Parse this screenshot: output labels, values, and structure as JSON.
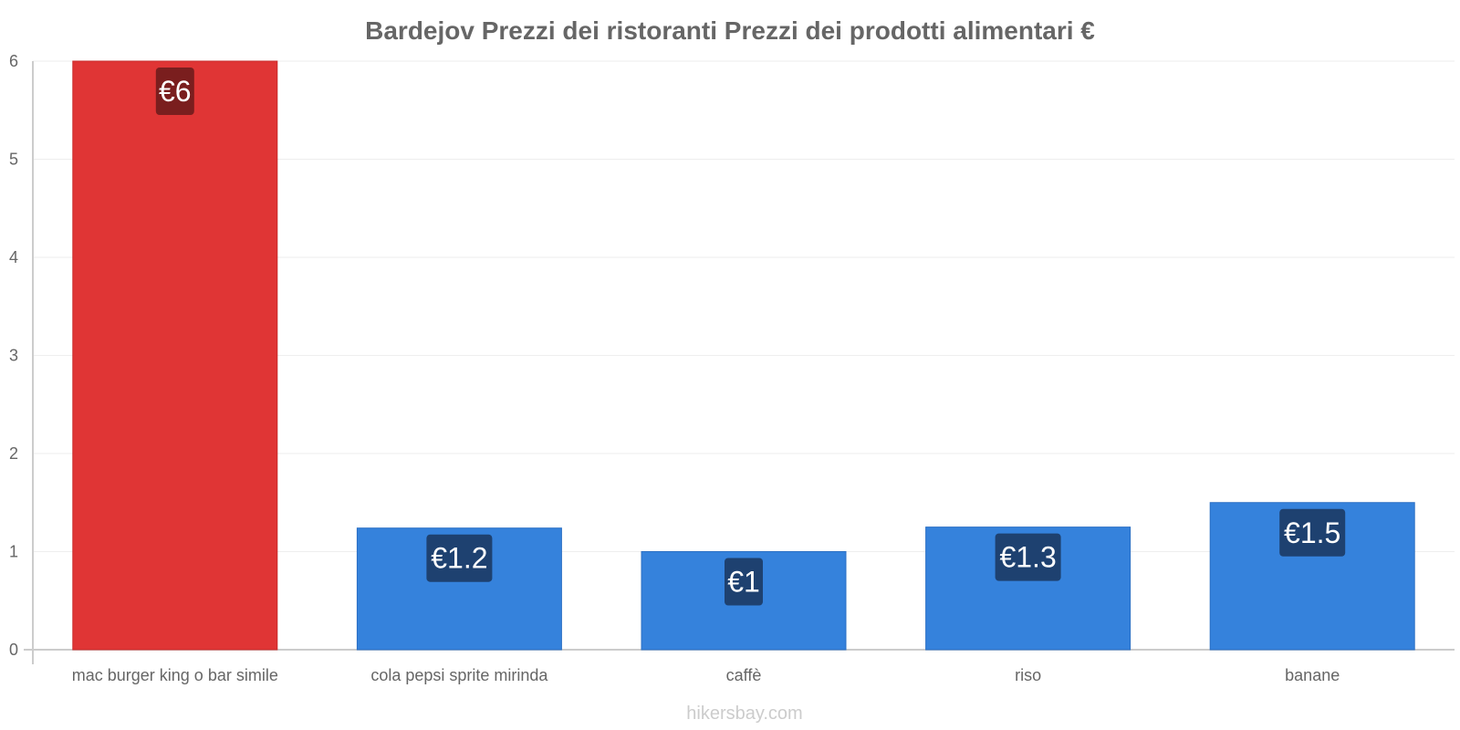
{
  "chart_data": {
    "type": "bar",
    "title": "Bardejov Prezzi dei ristoranti Prezzi dei prodotti alimentari €",
    "categories": [
      "mac burger king o bar simile",
      "cola pepsi sprite mirinda",
      "caffè",
      "riso",
      "banane"
    ],
    "values": [
      6,
      1.24,
      1,
      1.25,
      1.5
    ],
    "data_labels": [
      "€6",
      "€1.2",
      "€1",
      "€1.3",
      "€1.5"
    ],
    "highlight_index": 0,
    "ylim": [
      0,
      6
    ],
    "yticks": [
      0,
      1,
      2,
      3,
      4,
      5,
      6
    ],
    "xlabel": "",
    "ylabel": "",
    "grid": true,
    "legend": "none"
  },
  "colors": {
    "highlight_bar": "#e03535",
    "highlight_label_bg": "#7a1e1e",
    "bar": "#3582dc",
    "label_bg": "#1e4170",
    "grid": "#eeeeee",
    "axis": "#cccccc"
  },
  "watermark": "hikersbay.com"
}
